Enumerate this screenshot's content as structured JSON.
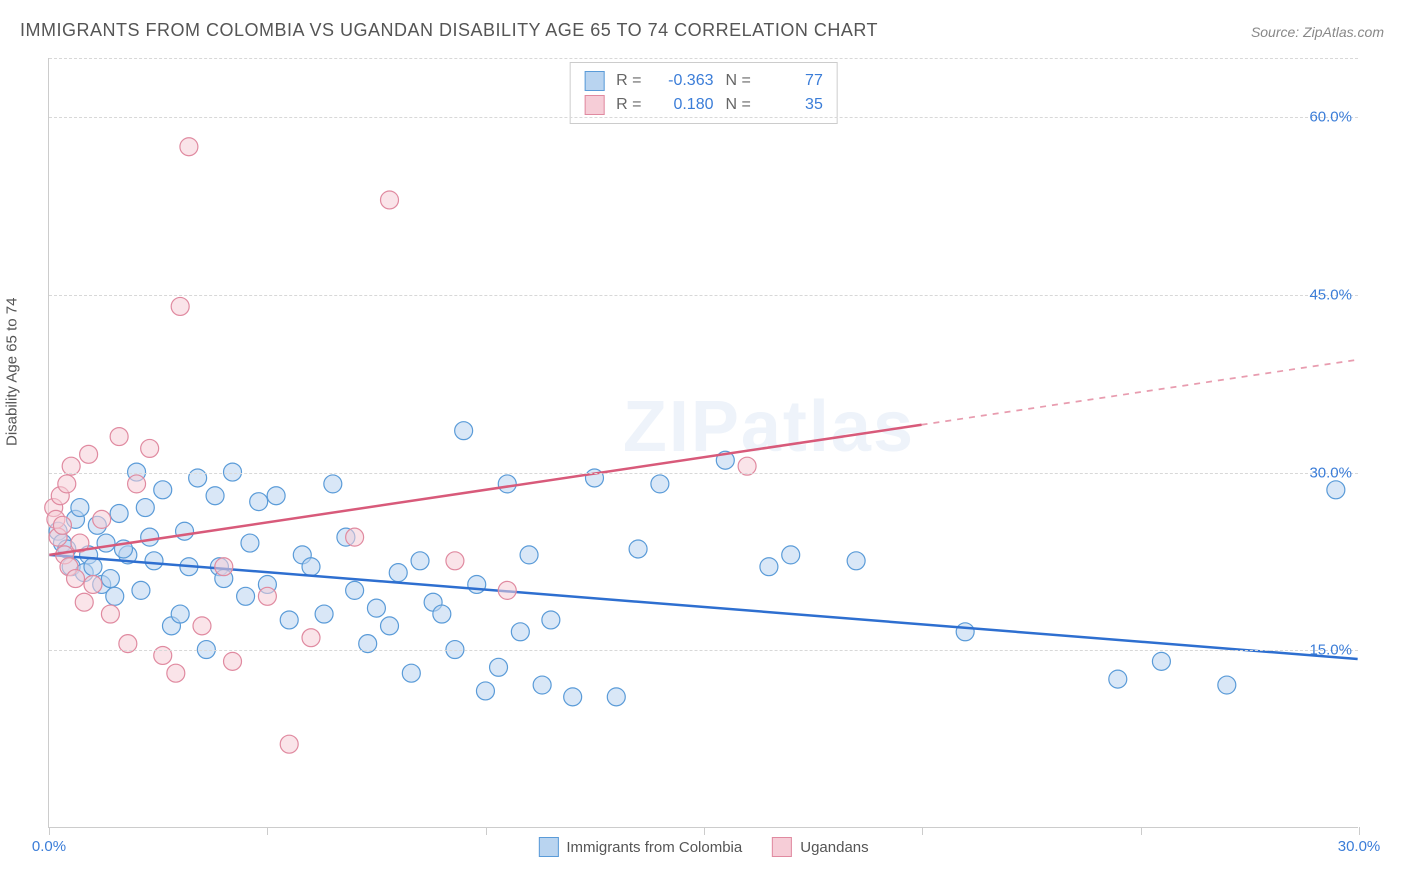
{
  "title": "IMMIGRANTS FROM COLOMBIA VS UGANDAN DISABILITY AGE 65 TO 74 CORRELATION CHART",
  "source": "Source: ZipAtlas.com",
  "watermark": "ZIPatlas",
  "y_axis_label": "Disability Age 65 to 74",
  "chart": {
    "type": "scatter",
    "background_color": "#ffffff",
    "grid_color": "#d8d8d8",
    "axis_color": "#cccccc",
    "title_fontsize": 18,
    "label_fontsize": 15,
    "xlim": [
      0,
      30
    ],
    "ylim": [
      0,
      65
    ],
    "x_ticks": [
      0,
      5,
      10,
      15,
      20,
      25,
      30
    ],
    "x_tick_labels": {
      "0": "0.0%",
      "30": "30.0%"
    },
    "x_tick_color": "#3b7dd8",
    "y_grid": [
      15,
      30,
      45,
      60,
      65
    ],
    "y_tick_labels": {
      "15": "15.0%",
      "30": "30.0%",
      "45": "45.0%",
      "60": "60.0%"
    },
    "y_tick_color": "#3b7dd8",
    "marker_radius": 9,
    "marker_opacity": 0.55,
    "line_width": 2.5,
    "series": [
      {
        "name": "Immigrants from Colombia",
        "color_fill": "#b9d4f0",
        "color_stroke": "#5a9bd8",
        "line_color": "#2e6fd0",
        "R": "-0.363",
        "N": "77",
        "trend": {
          "x1": 0,
          "y1": 23.0,
          "x2": 30,
          "y2": 14.2,
          "solid_to_x": 30
        },
        "points": [
          [
            0.2,
            25.0
          ],
          [
            0.3,
            24.0
          ],
          [
            0.4,
            23.5
          ],
          [
            0.5,
            22.0
          ],
          [
            0.6,
            26.0
          ],
          [
            0.7,
            27.0
          ],
          [
            0.8,
            21.5
          ],
          [
            0.9,
            23.0
          ],
          [
            1.0,
            22.0
          ],
          [
            1.1,
            25.5
          ],
          [
            1.2,
            20.5
          ],
          [
            1.3,
            24.0
          ],
          [
            1.4,
            21.0
          ],
          [
            1.5,
            19.5
          ],
          [
            1.6,
            26.5
          ],
          [
            1.8,
            23.0
          ],
          [
            2.0,
            30.0
          ],
          [
            2.1,
            20.0
          ],
          [
            2.2,
            27.0
          ],
          [
            2.4,
            22.5
          ],
          [
            2.6,
            28.5
          ],
          [
            2.8,
            17.0
          ],
          [
            3.0,
            18.0
          ],
          [
            3.2,
            22.0
          ],
          [
            3.4,
            29.5
          ],
          [
            3.6,
            15.0
          ],
          [
            3.8,
            28.0
          ],
          [
            3.9,
            22.0
          ],
          [
            4.0,
            21.0
          ],
          [
            4.2,
            30.0
          ],
          [
            4.5,
            19.5
          ],
          [
            4.8,
            27.5
          ],
          [
            5.0,
            20.5
          ],
          [
            5.2,
            28.0
          ],
          [
            5.5,
            17.5
          ],
          [
            5.8,
            23.0
          ],
          [
            6.0,
            22.0
          ],
          [
            6.3,
            18.0
          ],
          [
            6.5,
            29.0
          ],
          [
            7.0,
            20.0
          ],
          [
            7.3,
            15.5
          ],
          [
            7.5,
            18.5
          ],
          [
            7.8,
            17.0
          ],
          [
            8.0,
            21.5
          ],
          [
            8.3,
            13.0
          ],
          [
            8.5,
            22.5
          ],
          [
            8.8,
            19.0
          ],
          [
            9.0,
            18.0
          ],
          [
            9.3,
            15.0
          ],
          [
            9.5,
            33.5
          ],
          [
            9.8,
            20.5
          ],
          [
            10.0,
            11.5
          ],
          [
            10.3,
            13.5
          ],
          [
            10.5,
            29.0
          ],
          [
            10.8,
            16.5
          ],
          [
            11.0,
            23.0
          ],
          [
            11.3,
            12.0
          ],
          [
            11.5,
            17.5
          ],
          [
            12.0,
            11.0
          ],
          [
            12.5,
            29.5
          ],
          [
            13.0,
            11.0
          ],
          [
            13.5,
            23.5
          ],
          [
            14.0,
            29.0
          ],
          [
            15.5,
            31.0
          ],
          [
            16.5,
            22.0
          ],
          [
            17.0,
            23.0
          ],
          [
            18.5,
            22.5
          ],
          [
            21.0,
            16.5
          ],
          [
            24.5,
            12.5
          ],
          [
            25.5,
            14.0
          ],
          [
            27.0,
            12.0
          ],
          [
            29.5,
            28.5
          ],
          [
            1.7,
            23.5
          ],
          [
            2.3,
            24.5
          ],
          [
            3.1,
            25.0
          ],
          [
            4.6,
            24.0
          ],
          [
            6.8,
            24.5
          ]
        ]
      },
      {
        "name": "Ugandans",
        "color_fill": "#f6cdd7",
        "color_stroke": "#e08aa0",
        "line_color": "#d85a7a",
        "R": "0.180",
        "N": "35",
        "trend": {
          "x1": 0,
          "y1": 23.0,
          "x2": 30,
          "y2": 39.5,
          "solid_to_x": 20
        },
        "points": [
          [
            0.1,
            27.0
          ],
          [
            0.15,
            26.0
          ],
          [
            0.2,
            24.5
          ],
          [
            0.25,
            28.0
          ],
          [
            0.3,
            25.5
          ],
          [
            0.35,
            23.0
          ],
          [
            0.4,
            29.0
          ],
          [
            0.45,
            22.0
          ],
          [
            0.5,
            30.5
          ],
          [
            0.6,
            21.0
          ],
          [
            0.7,
            24.0
          ],
          [
            0.8,
            19.0
          ],
          [
            0.9,
            31.5
          ],
          [
            1.0,
            20.5
          ],
          [
            1.2,
            26.0
          ],
          [
            1.4,
            18.0
          ],
          [
            1.6,
            33.0
          ],
          [
            1.8,
            15.5
          ],
          [
            2.0,
            29.0
          ],
          [
            2.3,
            32.0
          ],
          [
            2.6,
            14.5
          ],
          [
            2.9,
            13.0
          ],
          [
            3.0,
            44.0
          ],
          [
            3.2,
            57.5
          ],
          [
            3.5,
            17.0
          ],
          [
            4.0,
            22.0
          ],
          [
            4.2,
            14.0
          ],
          [
            5.0,
            19.5
          ],
          [
            5.5,
            7.0
          ],
          [
            6.0,
            16.0
          ],
          [
            7.0,
            24.5
          ],
          [
            7.8,
            53.0
          ],
          [
            9.3,
            22.5
          ],
          [
            10.5,
            20.0
          ],
          [
            16.0,
            30.5
          ]
        ]
      }
    ]
  },
  "stats_legend": {
    "value_color": "#3b7dd8",
    "label_color": "#666666"
  }
}
